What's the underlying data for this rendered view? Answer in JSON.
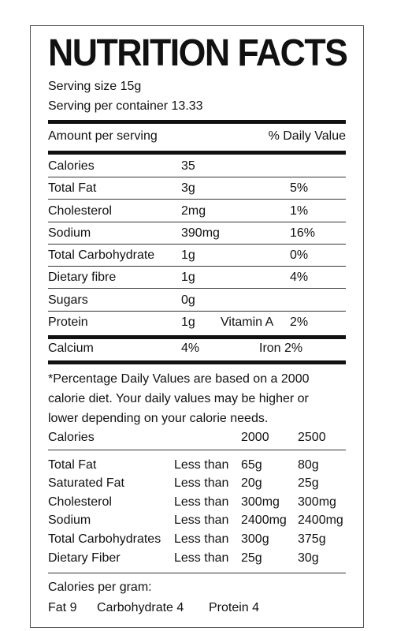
{
  "title": "NUTRITION FACTS",
  "serving_size": "Serving size 15g",
  "servings_per_container": "Serving per container 13.33",
  "header": {
    "left": "Amount per serving",
    "right": "% Daily Value"
  },
  "nutrients": [
    {
      "name": "Calories",
      "amount": "35",
      "dv": ""
    },
    {
      "name": "Total Fat",
      "amount": "3g",
      "dv": "5%"
    },
    {
      "name": "Cholesterol",
      "amount": "2mg",
      "dv": "1%"
    },
    {
      "name": "Sodium",
      "amount": "390mg",
      "dv": "16%"
    },
    {
      "name": "Total Carbohydrate",
      "amount": "1g",
      "dv": "0%"
    },
    {
      "name": "Dietary fibre",
      "amount": "1g",
      "dv": "4%"
    },
    {
      "name": "Sugars",
      "amount": "0g",
      "dv": ""
    },
    {
      "name": "Protein",
      "amount": "1g",
      "extra": "Vitamin A",
      "dv": "2%"
    }
  ],
  "minerals": {
    "calcium_label": "Calcium",
    "calcium_value": "4%",
    "iron": "Iron 2%"
  },
  "footnote": [
    "*Percentage Daily Values are based on a 2000",
    "calorie diet. Your daily values may be higher or",
    "lower depending on your calorie needs."
  ],
  "reference": {
    "header": {
      "label": "Calories",
      "col1": "2000",
      "col2": "2500"
    },
    "rows": [
      {
        "name": "Total Fat",
        "qual": "Less than",
        "v1": "65g",
        "v2": "80g"
      },
      {
        "name": "Saturated Fat",
        "qual": "Less than",
        "v1": "20g",
        "v2": "25g"
      },
      {
        "name": "Cholesterol",
        "qual": "Less than",
        "v1": "300mg",
        "v2": "300mg"
      },
      {
        "name": "Sodium",
        "qual": "Less than",
        "v1": "2400mg",
        "v2": "2400mg"
      },
      {
        "name": "Total Carbohydrates",
        "qual": "Less than",
        "v1": "300g",
        "v2": "375g"
      },
      {
        "name": "Dietary Fiber",
        "qual": "Less than",
        "v1": "25g",
        "v2": "30g"
      }
    ]
  },
  "calories_per_gram": {
    "label": "Calories per gram:",
    "fat": "Fat 9",
    "carbohydrate": "Carbohydrate 4",
    "protein": "Protein 4"
  }
}
